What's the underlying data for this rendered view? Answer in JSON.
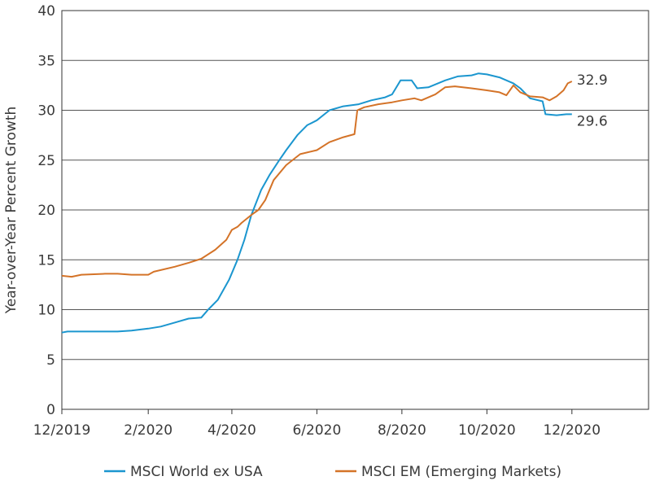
{
  "chart_data": {
    "type": "line",
    "ylabel": "Year-over-Year Percent Growth",
    "xlabel": "",
    "ylim": [
      0,
      40
    ],
    "yticks": [
      0,
      5,
      10,
      15,
      20,
      25,
      30,
      35,
      40
    ],
    "xlim": [
      "2019-12-01",
      "2021-01-25"
    ],
    "xticks": [
      {
        "date": "2019-12-01",
        "label": "12/2019"
      },
      {
        "date": "2020-02-01",
        "label": "2/2020"
      },
      {
        "date": "2020-04-01",
        "label": "4/2020"
      },
      {
        "date": "2020-06-01",
        "label": "6/2020"
      },
      {
        "date": "2020-08-01",
        "label": "8/2020"
      },
      {
        "date": "2020-10-01",
        "label": "10/2020"
      },
      {
        "date": "2020-12-01",
        "label": "12/2020"
      }
    ],
    "grid": "horizontal",
    "legend_position": "bottom",
    "series": [
      {
        "name": "MSCI World ex USA",
        "color": "#1b96cf",
        "end_label": "29.6",
        "points": [
          [
            "2019-12-01",
            7.7
          ],
          [
            "2019-12-05",
            7.8
          ],
          [
            "2019-12-20",
            7.8
          ],
          [
            "2020-01-01",
            7.8
          ],
          [
            "2020-01-10",
            7.8
          ],
          [
            "2020-01-20",
            7.9
          ],
          [
            "2020-02-01",
            8.1
          ],
          [
            "2020-02-10",
            8.3
          ],
          [
            "2020-02-20",
            8.7
          ],
          [
            "2020-03-01",
            9.1
          ],
          [
            "2020-03-10",
            9.2
          ],
          [
            "2020-03-15",
            10.0
          ],
          [
            "2020-03-22",
            11.0
          ],
          [
            "2020-03-30",
            13.0
          ],
          [
            "2020-04-05",
            15.0
          ],
          [
            "2020-04-10",
            17.0
          ],
          [
            "2020-04-15",
            19.5
          ],
          [
            "2020-04-22",
            22.0
          ],
          [
            "2020-04-28",
            23.5
          ],
          [
            "2020-05-05",
            25.0
          ],
          [
            "2020-05-10",
            26.0
          ],
          [
            "2020-05-18",
            27.5
          ],
          [
            "2020-05-25",
            28.5
          ],
          [
            "2020-06-01",
            29.0
          ],
          [
            "2020-06-10",
            30.0
          ],
          [
            "2020-06-20",
            30.4
          ],
          [
            "2020-07-01",
            30.6
          ],
          [
            "2020-07-10",
            31.0
          ],
          [
            "2020-07-20",
            31.3
          ],
          [
            "2020-07-25",
            31.6
          ],
          [
            "2020-07-31",
            33.0
          ],
          [
            "2020-08-08",
            33.0
          ],
          [
            "2020-08-12",
            32.2
          ],
          [
            "2020-08-20",
            32.3
          ],
          [
            "2020-09-01",
            33.0
          ],
          [
            "2020-09-10",
            33.4
          ],
          [
            "2020-09-20",
            33.5
          ],
          [
            "2020-09-25",
            33.7
          ],
          [
            "2020-10-01",
            33.6
          ],
          [
            "2020-10-10",
            33.3
          ],
          [
            "2020-10-20",
            32.7
          ],
          [
            "2020-10-25",
            32.2
          ],
          [
            "2020-11-01",
            31.2
          ],
          [
            "2020-11-10",
            30.9
          ],
          [
            "2020-11-12",
            29.6
          ],
          [
            "2020-11-20",
            29.5
          ],
          [
            "2020-11-27",
            29.6
          ],
          [
            "2020-12-01",
            29.6
          ]
        ]
      },
      {
        "name": "MSCI EM (Emerging Markets)",
        "color": "#d47328",
        "end_label": "32.9",
        "points": [
          [
            "2019-12-01",
            13.4
          ],
          [
            "2019-12-08",
            13.3
          ],
          [
            "2019-12-15",
            13.5
          ],
          [
            "2020-01-01",
            13.6
          ],
          [
            "2020-01-10",
            13.6
          ],
          [
            "2020-01-20",
            13.5
          ],
          [
            "2020-02-01",
            13.5
          ],
          [
            "2020-02-05",
            13.8
          ],
          [
            "2020-02-20",
            14.3
          ],
          [
            "2020-03-01",
            14.7
          ],
          [
            "2020-03-10",
            15.1
          ],
          [
            "2020-03-20",
            16.0
          ],
          [
            "2020-03-28",
            17.0
          ],
          [
            "2020-04-01",
            18.0
          ],
          [
            "2020-04-05",
            18.3
          ],
          [
            "2020-04-08",
            18.7
          ],
          [
            "2020-04-15",
            19.5
          ],
          [
            "2020-04-20",
            20.0
          ],
          [
            "2020-04-25",
            21.0
          ],
          [
            "2020-05-01",
            23.0
          ],
          [
            "2020-05-10",
            24.5
          ],
          [
            "2020-05-20",
            25.6
          ],
          [
            "2020-06-01",
            26.0
          ],
          [
            "2020-06-10",
            26.8
          ],
          [
            "2020-06-20",
            27.3
          ],
          [
            "2020-06-28",
            27.6
          ],
          [
            "2020-06-30",
            30.0
          ],
          [
            "2020-07-05",
            30.3
          ],
          [
            "2020-07-15",
            30.6
          ],
          [
            "2020-07-25",
            30.8
          ],
          [
            "2020-08-01",
            31.0
          ],
          [
            "2020-08-10",
            31.2
          ],
          [
            "2020-08-15",
            31.0
          ],
          [
            "2020-08-25",
            31.6
          ],
          [
            "2020-09-01",
            32.3
          ],
          [
            "2020-09-08",
            32.4
          ],
          [
            "2020-09-20",
            32.2
          ],
          [
            "2020-10-01",
            32.0
          ],
          [
            "2020-10-10",
            31.8
          ],
          [
            "2020-10-15",
            31.5
          ],
          [
            "2020-10-20",
            32.5
          ],
          [
            "2020-10-25",
            31.8
          ],
          [
            "2020-11-01",
            31.4
          ],
          [
            "2020-11-10",
            31.3
          ],
          [
            "2020-11-15",
            31.0
          ],
          [
            "2020-11-20",
            31.4
          ],
          [
            "2020-11-25",
            32.0
          ],
          [
            "2020-11-28",
            32.7
          ],
          [
            "2020-12-01",
            32.9
          ]
        ]
      }
    ]
  }
}
